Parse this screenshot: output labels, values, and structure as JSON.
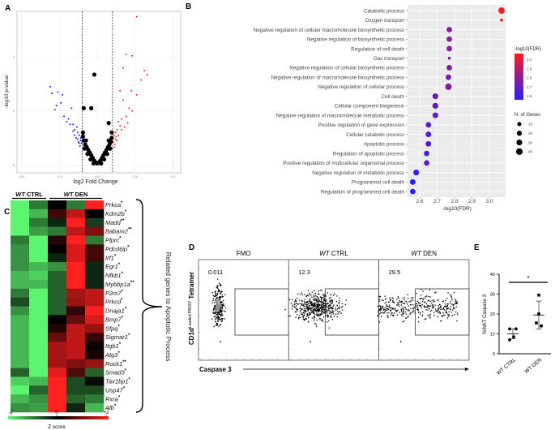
{
  "panel_labels": [
    "A",
    "B",
    "C",
    "D",
    "E"
  ],
  "chart_data": [
    {
      "panel": "A",
      "type": "scatter",
      "title": "",
      "xlabel": "log2 Fold Change",
      "ylabel": "-log10 p-value",
      "xticks": [
        "-5.0",
        "-2.5",
        "0.0",
        "2.5",
        "5.0"
      ],
      "xtick_values": [
        -5,
        -2.5,
        0,
        2.5,
        5
      ],
      "yticks": [
        "0",
        "2",
        "4"
      ],
      "ytick_values": [
        0,
        2,
        4
      ],
      "xlim": [
        -5.3,
        5.5
      ],
      "ylim": [
        -0.3,
        5.7
      ],
      "grid": true,
      "thresholds_x": [
        -1,
        1
      ],
      "colors": {
        "up": "#e8262b",
        "down": "#1a23e8",
        "ns": "#000000"
      },
      "down": [
        [
          -3.1,
          2.9
        ],
        [
          -3.0,
          2.65
        ],
        [
          -2.6,
          2.7
        ],
        [
          -2.4,
          2.3
        ],
        [
          -2.3,
          2.6
        ],
        [
          -2.7,
          2.2
        ],
        [
          -2.8,
          2.05
        ],
        [
          -1.7,
          2.1
        ],
        [
          -2.2,
          1.8
        ],
        [
          -1.9,
          1.7
        ],
        [
          -1.6,
          1.5
        ],
        [
          -1.8,
          1.5
        ],
        [
          -1.5,
          1.3
        ],
        [
          -1.3,
          1.2
        ],
        [
          -1.2,
          1.1
        ],
        [
          -1.4,
          1.0
        ],
        [
          -1.1,
          0.9
        ],
        [
          -1.2,
          0.8
        ],
        [
          -1.5,
          1.1
        ],
        [
          -1.3,
          0.95
        ],
        [
          -1.1,
          1.0
        ],
        [
          -1.05,
          0.8
        ],
        [
          -1.25,
          0.85
        ],
        [
          -1.6,
          1.25
        ],
        [
          -1.15,
          0.7
        ],
        [
          -2.0,
          1.6
        ],
        [
          -1.35,
          1.4
        ]
      ],
      "up": [
        [
          2.6,
          5.5
        ],
        [
          1.9,
          4.1
        ],
        [
          2.3,
          4.05
        ],
        [
          1.7,
          3.6
        ],
        [
          2.9,
          3.15
        ],
        [
          3.1,
          3.5
        ],
        [
          3.3,
          3.35
        ],
        [
          2.6,
          2.6
        ],
        [
          1.5,
          2.75
        ],
        [
          2.25,
          2.75
        ],
        [
          1.7,
          2.4
        ],
        [
          2.3,
          2.0
        ],
        [
          2.1,
          2.1
        ],
        [
          1.9,
          1.8
        ],
        [
          1.6,
          1.7
        ],
        [
          1.4,
          1.6
        ],
        [
          1.5,
          1.45
        ],
        [
          1.3,
          1.3
        ],
        [
          1.2,
          1.2
        ],
        [
          1.1,
          1.1
        ],
        [
          1.4,
          1.1
        ],
        [
          1.2,
          0.95
        ],
        [
          1.05,
          0.85
        ],
        [
          1.3,
          0.9
        ],
        [
          1.6,
          1.3
        ],
        [
          1.15,
          0.75
        ],
        [
          2.0,
          1.55
        ],
        [
          1.8,
          1.4
        ],
        [
          1.25,
          1.05
        ],
        [
          1.1,
          0.65
        ]
      ],
      "ns": [
        [
          -0.2,
          3.35
        ],
        [
          -0.4,
          2.1
        ],
        [
          -0.9,
          2.1
        ],
        [
          0.75,
          1.55
        ],
        [
          -0.9,
          0.9
        ],
        [
          -0.8,
          0.75
        ],
        [
          -0.7,
          0.65
        ],
        [
          -0.6,
          0.55
        ],
        [
          -0.5,
          0.45
        ],
        [
          -0.4,
          0.35
        ],
        [
          -0.3,
          0.25
        ],
        [
          -0.2,
          0.15
        ],
        [
          -0.1,
          0.08
        ],
        [
          0,
          0.05
        ],
        [
          0.1,
          0.08
        ],
        [
          0.2,
          0.15
        ],
        [
          0.3,
          0.25
        ],
        [
          0.4,
          0.35
        ],
        [
          0.5,
          0.45
        ],
        [
          0.6,
          0.55
        ],
        [
          0.7,
          0.65
        ],
        [
          0.8,
          0.75
        ],
        [
          0.9,
          0.85
        ],
        [
          0.95,
          1.0
        ],
        [
          -0.95,
          1.05
        ],
        [
          -0.85,
          0.6
        ],
        [
          0.85,
          0.6
        ],
        [
          -0.65,
          0.4
        ],
        [
          0.65,
          0.4
        ],
        [
          -0.45,
          0.2
        ],
        [
          0.45,
          0.2
        ],
        [
          0.25,
          0.05
        ],
        [
          -0.25,
          0.05
        ],
        [
          -0.75,
          0.9
        ],
        [
          0.75,
          0.9
        ],
        [
          -0.95,
          1.2
        ],
        [
          0.95,
          1.2
        ]
      ]
    },
    {
      "panel": "B",
      "type": "scatter",
      "title": "",
      "xlabel": "-log10(FDR)",
      "xticks": [
        "2.6",
        "2.7",
        "2.8",
        "2.9",
        "3.0"
      ],
      "xtick_values": [
        2.6,
        2.7,
        2.8,
        2.9,
        3.0
      ],
      "xlim": [
        2.53,
        3.09
      ],
      "categories": [
        "Catabolic process",
        "Oxygen transport",
        "Negative regulation of cellular macromolecule biosynthetic process",
        "Negative regulation of biosynthetic process",
        "Regulation of cell death",
        "Gas transport",
        "Negative regulation of cellular biosynthetic process",
        "Negative regulation of macromolecule biosynthetic process",
        "Negative regulation of cellular process",
        "Cell death",
        "Cellular component biogenesis",
        "Negative regulation of macromolecule metabolic process",
        "Positive regulation of gene expression",
        "Cellular catabolic process",
        "Apoptotic process",
        "Regulation of apoptotic process",
        "Positive regulation of multicellular organismal process",
        "Negative regulation of metabolic process",
        "Programmed cell death",
        "Regulation of programmed cell death"
      ],
      "values": [
        3.07,
        3.07,
        2.77,
        2.77,
        2.77,
        2.77,
        2.77,
        2.765,
        2.765,
        2.69,
        2.69,
        2.69,
        2.65,
        2.65,
        2.65,
        2.64,
        2.64,
        2.58,
        2.56,
        2.56
      ],
      "n_genes": [
        38,
        3,
        25,
        25,
        25,
        3,
        25,
        25,
        40,
        28,
        30,
        28,
        24,
        26,
        26,
        24,
        24,
        28,
        26,
        24
      ],
      "color_legend_title": "-log10(FDR)",
      "color_ticks": [
        "3.0",
        "2.9",
        "2.8",
        "2.7",
        "2.6"
      ],
      "color_tick_values": [
        3.0,
        2.9,
        2.8,
        2.7,
        2.6
      ],
      "color_low": "#2a1dff",
      "color_high": "#ff1c1c",
      "size_legend_title": "N. of Genes",
      "size_ticks": [
        "10",
        "20",
        "30",
        "40"
      ],
      "size_tick_values": [
        10,
        20,
        30,
        40
      ],
      "background": "#ebebeb"
    },
    {
      "panel": "C",
      "type": "heatmap",
      "groups": [
        {
          "italic": "WT",
          "label": "CTRL",
          "columns": 2
        },
        {
          "italic": "WT",
          "label": "DEN",
          "columns": 3
        }
      ],
      "genes": [
        "Prkca",
        "Kdm2b",
        "Madd",
        "Babam2",
        "Plprc",
        "Pdcd6ip",
        "Irf1",
        "Egr1",
        "Nfkb1",
        "Mybbp1a",
        "P2rx7",
        "Prkcd",
        "Dnaja1",
        "Bmp7",
        "Sfpq",
        "Sigmar1",
        "Itgb1",
        "Atg3",
        "Rock1",
        "Smad3",
        "Tax1bp1",
        "Usp47",
        "Rxra",
        "Alb"
      ],
      "stars": [
        "*",
        "*",
        "**",
        "**",
        "*",
        "*",
        "*",
        "*",
        "*",
        "**",
        "*",
        "*",
        "*",
        "*",
        "*",
        "*",
        "*",
        "*",
        "**",
        "*",
        "*",
        "*",
        "*",
        "*"
      ],
      "values": [
        [
          -2,
          -1,
          0,
          -1,
          2
        ],
        [
          -2,
          -1.5,
          0.5,
          1.5,
          0
        ],
        [
          -2,
          -1,
          -0.3,
          2,
          -0.5
        ],
        [
          -2,
          -1.3,
          -1,
          1.5,
          1
        ],
        [
          -1,
          -2,
          0.3,
          2,
          -1
        ],
        [
          -1.2,
          -2,
          0,
          1.7,
          0.5
        ],
        [
          -1.2,
          -2,
          -0.3,
          1.7,
          0.5
        ],
        [
          -1.2,
          -1.5,
          -1.2,
          2,
          -0.3
        ],
        [
          -1.5,
          -1.7,
          -0.8,
          2,
          -0.3
        ],
        [
          -1.5,
          -1.5,
          -0.8,
          2,
          -0.3
        ],
        [
          -1,
          -2,
          -0.8,
          1.3,
          1.5
        ],
        [
          -0.6,
          -2,
          -0.8,
          1.2,
          1.5
        ],
        [
          -1.2,
          -2,
          -0.8,
          0.4,
          2
        ],
        [
          -1.5,
          -2,
          0,
          0.8,
          1.7
        ],
        [
          -1.5,
          -2,
          0.3,
          1.5,
          1.2
        ],
        [
          -1.5,
          -2,
          0.8,
          1.5,
          0.4
        ],
        [
          -1.5,
          -2,
          1.3,
          1.5,
          0.1
        ],
        [
          -1.5,
          -2,
          1.3,
          1.5,
          0.2
        ],
        [
          -1.5,
          -2,
          1.3,
          1,
          1.2
        ],
        [
          -0.8,
          -2,
          1.8,
          0.6,
          -0.8
        ],
        [
          -1.7,
          -1.5,
          2,
          -0.6,
          -0.1
        ],
        [
          -2,
          -0.8,
          2,
          -0.6,
          -0.6
        ],
        [
          -1.5,
          -1.2,
          2,
          -0.8,
          -1
        ],
        [
          -1.2,
          -1.3,
          2,
          -0.3,
          -1.5
        ]
      ],
      "scale_ticks": [
        "-2",
        "0",
        "+2"
      ],
      "scale_label": "Z score",
      "color_low": "#5cf56f",
      "color_mid": "#000000",
      "color_high": "#ff2020",
      "annotation": "Related genes to Apoptotic Process"
    },
    {
      "panel": "D",
      "type": "scatter",
      "xlabel": "Caspase 3",
      "ylabel_main": "CD1d",
      "ylabel_sup": "Loaded PBS57",
      "ylabel_end": "Tetramer",
      "plots": [
        {
          "title_italic": "",
          "title": "FMO",
          "gate_pct": "0.011"
        },
        {
          "title_italic": "WT",
          "title": "CTRL",
          "gate_pct": "12.3"
        },
        {
          "title_italic": "WT",
          "title": "DEN",
          "gate_pct": "29.5"
        }
      ]
    },
    {
      "panel": "E",
      "type": "scatter",
      "ylabel": "%iNKT Caspase 3",
      "ylabel_sup": "-",
      "categories": [
        "WT CTRL",
        "WT DEN"
      ],
      "values": [
        [
          12.5,
          12.5,
          7,
          8.5
        ],
        [
          29.5,
          20,
          15.5,
          14
        ]
      ],
      "mean": [
        10,
        19.5
      ],
      "error_range": [
        [
          7.5,
          12.5
        ],
        [
          12.5,
          26.5
        ]
      ],
      "ylim": [
        0,
        40
      ],
      "yticks": [
        "0",
        "10",
        "20",
        "30",
        "40"
      ],
      "ytick_values": [
        0,
        10,
        20,
        30,
        40
      ],
      "significance": "*"
    }
  ]
}
